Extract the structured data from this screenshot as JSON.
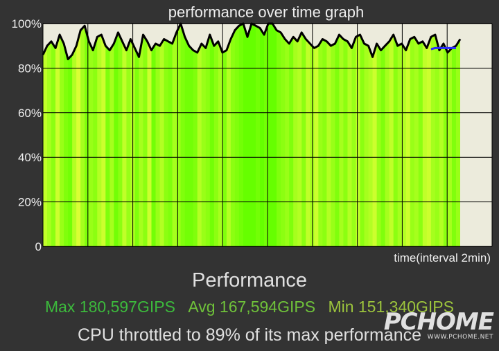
{
  "chart_data": {
    "type": "area",
    "title": "performance over time graph",
    "xlabel": "time(interval 2min)",
    "ylabel": "",
    "ylim": [
      0,
      100
    ],
    "y_ticks": [
      "0",
      "20%",
      "40%",
      "60%",
      "80%",
      "100%"
    ],
    "x_range": [
      0,
      100
    ],
    "grid": true,
    "series": [
      {
        "x": [
          0,
          1,
          2,
          3,
          4,
          5,
          6,
          7,
          8,
          9,
          10,
          11,
          12,
          13,
          14,
          15,
          16,
          17,
          18,
          19,
          20,
          21,
          22,
          23,
          24,
          25,
          26,
          27,
          28,
          29,
          30,
          31,
          32,
          33,
          34,
          35,
          36,
          37,
          38,
          39,
          40,
          41,
          42,
          43,
          44,
          45,
          46,
          47,
          48,
          49,
          50,
          51,
          52,
          53,
          54,
          55,
          56,
          57,
          58,
          59,
          60,
          61,
          62,
          63,
          64,
          65,
          66,
          67,
          68,
          69,
          70,
          71,
          72,
          73,
          74,
          75,
          76,
          77,
          78,
          79,
          80,
          81,
          82,
          83,
          84,
          85,
          86,
          87,
          88,
          89,
          90,
          91,
          92,
          93,
          94,
          95,
          96,
          97,
          98,
          99,
          100
        ],
        "values": [
          86,
          90,
          92,
          89,
          95,
          91,
          84,
          86,
          90,
          97,
          99,
          92,
          88,
          94,
          95,
          90,
          88,
          91,
          96,
          92,
          88,
          93,
          89,
          85,
          95,
          92,
          88,
          91,
          90,
          93,
          92,
          91,
          96,
          100,
          94,
          90,
          88,
          87,
          91,
          89,
          95,
          90,
          92,
          87,
          88,
          93,
          97,
          99,
          100,
          94,
          100,
          99,
          98,
          95,
          100,
          100,
          97,
          96,
          93,
          91,
          94,
          92,
          96,
          93,
          91,
          89,
          90,
          93,
          92,
          90,
          91,
          95,
          93,
          92,
          89,
          94,
          95,
          91,
          90,
          85,
          91,
          88,
          90,
          92,
          95,
          90,
          91,
          88,
          93,
          94,
          91,
          92,
          89,
          94,
          95,
          88,
          91,
          87,
          89,
          90,
          93
        ]
      }
    ],
    "highlight": {
      "x": [
        93,
        94,
        95,
        96,
        97,
        98,
        99
      ],
      "values": [
        88.5,
        89,
        89,
        89,
        89,
        89,
        89
      ]
    },
    "stripes": [
      0.7,
      0.5,
      0.3,
      0.8,
      0.4,
      0.2,
      0.1,
      0.6,
      0.9,
      0.5,
      0.2,
      0.4,
      0.3,
      0.6,
      0.8,
      0.2,
      0.5,
      0.1,
      0.3,
      0.7,
      0.4,
      0.6,
      0.2,
      0.5,
      0.3,
      0.8,
      0.1,
      0.4,
      0.6,
      0.3,
      0.2,
      0.5,
      0.4,
      0.2,
      0.1,
      0.1,
      0.2,
      0.6,
      0.4,
      0.3,
      0.1,
      0.3,
      0.5,
      0.2,
      0.6,
      0.3,
      0.2,
      0.1,
      0.0,
      0.0,
      0.0,
      0.1,
      0.0,
      0.1,
      0.0,
      0.0,
      0.2,
      0.3,
      0.4,
      0.2,
      0.5,
      0.6,
      0.3,
      0.7,
      0.5,
      0.8,
      0.4,
      0.3,
      0.6,
      0.4,
      0.2,
      0.5,
      0.3,
      0.6,
      0.4,
      0.7,
      0.3,
      0.5,
      0.6,
      0.8,
      0.4,
      0.2,
      0.5,
      0.7,
      0.3,
      0.5,
      0.6,
      0.8,
      0.4,
      0.5,
      0.3,
      0.7,
      0.8,
      0.5,
      0.4,
      0.6,
      0.3,
      0.5,
      0.2,
      0.4
    ]
  },
  "summary": {
    "heading": "Performance",
    "max_label": "Max 180,597GIPS",
    "avg_label": "Avg 167,594GIPS",
    "min_label": "Min 151,340GIPS",
    "throttle_text": "CPU throttled to 89% of its max performance"
  },
  "colors": {
    "max": "#3cba3c",
    "avg": "#6fc23a",
    "min": "#9cc43c",
    "plot_bg": "#ecebdc",
    "fill_a": "#66ff00",
    "fill_b": "#e6ff3a",
    "line": "#000000",
    "highlight": "#2a2aff"
  },
  "watermark": {
    "logo": "PCHOME",
    "url": "WWW.PCHOME.NET"
  }
}
